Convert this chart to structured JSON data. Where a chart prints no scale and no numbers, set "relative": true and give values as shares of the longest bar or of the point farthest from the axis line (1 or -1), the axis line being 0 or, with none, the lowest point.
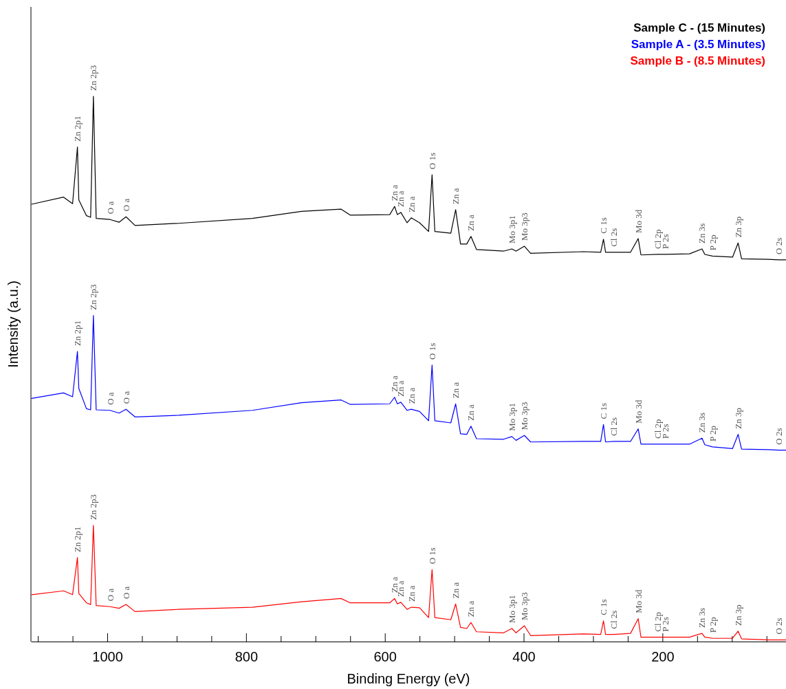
{
  "chart_data": {
    "type": "line",
    "relative": true,
    "xlabel": "Binding Energy (eV)",
    "ylabel": "Intensity (a.u.)",
    "xlim": [
      1110,
      22
    ],
    "xticks": [
      {
        "value": 1100,
        "label": null
      },
      {
        "value": 1050,
        "label": null
      },
      1000,
      {
        "value": 950,
        "label": null
      },
      {
        "value": 900,
        "label": null
      },
      {
        "value": 850,
        "label": null
      },
      800,
      {
        "value": 750,
        "label": null
      },
      {
        "value": 700,
        "label": null
      },
      {
        "value": 650,
        "label": null
      },
      600,
      {
        "value": 550,
        "label": null
      },
      {
        "value": 500,
        "label": null
      },
      {
        "value": 450,
        "label": null
      },
      400,
      {
        "value": 350,
        "label": null
      },
      {
        "value": 300,
        "label": null
      },
      {
        "value": 250,
        "label": null
      },
      200,
      {
        "value": 150,
        "label": null
      },
      {
        "value": 100,
        "label": null
      },
      {
        "value": 50,
        "label": null
      }
    ],
    "x": [
      1109,
      1063,
      1050,
      1043,
      1041,
      1030,
      1024,
      1020,
      1016,
      996,
      983,
      973,
      960,
      897,
      791,
      720,
      663,
      650,
      593,
      586,
      582,
      577,
      568,
      562,
      550,
      537,
      532,
      528,
      505,
      498,
      491,
      482,
      476,
      468,
      429,
      417,
      411,
      399,
      390,
      314,
      289,
      285,
      282,
      270,
      246,
      235,
      231,
      207,
      196,
      161,
      143,
      139,
      128,
      99,
      91,
      86,
      48,
      32,
      22
    ],
    "series": [
      {
        "name": "Sample C - (15  Minutes)",
        "color": "#000000",
        "values": [
          0.802,
          0.815,
          0.803,
          0.907,
          0.81,
          0.781,
          0.778,
          1.0,
          0.776,
          0.774,
          0.769,
          0.779,
          0.763,
          0.767,
          0.776,
          0.789,
          0.793,
          0.782,
          0.783,
          0.798,
          0.783,
          0.787,
          0.768,
          0.777,
          0.768,
          0.752,
          0.856,
          0.752,
          0.749,
          0.792,
          0.729,
          0.729,
          0.743,
          0.719,
          0.716,
          0.72,
          0.716,
          0.725,
          0.712,
          0.715,
          0.714,
          0.738,
          0.714,
          0.714,
          0.714,
          0.739,
          0.709,
          0.71,
          0.71,
          0.711,
          0.72,
          0.71,
          0.707,
          0.705,
          0.731,
          0.702,
          0.701,
          0.7,
          0.7
        ]
      },
      {
        "name": "Sample A - (3.5 Minutes)",
        "color": "#0000ff",
        "values": [
          0.446,
          0.456,
          0.449,
          0.532,
          0.464,
          0.427,
          0.425,
          0.598,
          0.425,
          0.424,
          0.419,
          0.426,
          0.412,
          0.415,
          0.424,
          0.438,
          0.443,
          0.435,
          0.436,
          0.448,
          0.436,
          0.439,
          0.424,
          0.426,
          0.422,
          0.405,
          0.507,
          0.405,
          0.401,
          0.436,
          0.381,
          0.38,
          0.395,
          0.372,
          0.371,
          0.376,
          0.369,
          0.378,
          0.366,
          0.367,
          0.367,
          0.398,
          0.366,
          0.367,
          0.367,
          0.39,
          0.362,
          0.362,
          0.362,
          0.362,
          0.373,
          0.361,
          0.357,
          0.354,
          0.38,
          0.353,
          0.352,
          0.351,
          0.351
        ]
      },
      {
        "name": "Sample B - (8.5 Minutes)",
        "color": "#ff0000",
        "values": [
          0.086,
          0.093,
          0.086,
          0.154,
          0.088,
          0.071,
          0.068,
          0.213,
          0.066,
          0.064,
          0.061,
          0.068,
          0.055,
          0.059,
          0.063,
          0.073,
          0.079,
          0.071,
          0.071,
          0.079,
          0.069,
          0.072,
          0.059,
          0.063,
          0.062,
          0.044,
          0.132,
          0.044,
          0.04,
          0.069,
          0.026,
          0.024,
          0.035,
          0.018,
          0.016,
          0.024,
          0.016,
          0.029,
          0.011,
          0.014,
          0.013,
          0.038,
          0.013,
          0.013,
          0.015,
          0.042,
          0.008,
          0.008,
          0.008,
          0.008,
          0.015,
          0.008,
          0.006,
          0.006,
          0.019,
          0.005,
          0.003,
          0.003,
          0.003
        ]
      }
    ],
    "legend": "top right",
    "annotations": [
      {
        "text": "Zn 2p1",
        "x": 1043,
        "y": 0.907
      },
      {
        "text": "Zn 2p3",
        "x": 1020,
        "y": 1.0
      },
      {
        "text": "O a",
        "x": 996,
        "y": 0.774
      },
      {
        "text": "O a",
        "x": 973,
        "y": 0.779
      },
      {
        "text": "Zn a",
        "x": 586,
        "y": 0.798
      },
      {
        "text": "Zn a",
        "x": 577,
        "y": 0.787
      },
      {
        "text": "Zn a",
        "x": 562,
        "y": 0.777
      },
      {
        "text": "O 1s",
        "x": 532,
        "y": 0.856
      },
      {
        "text": "Zn a",
        "x": 498,
        "y": 0.792
      },
      {
        "text": "Zn a",
        "x": 476,
        "y": 0.743
      },
      {
        "text": "Mo 3p1",
        "x": 417,
        "y": 0.72
      },
      {
        "text": "Mo 3p3",
        "x": 399,
        "y": 0.725
      },
      {
        "text": "C 1s",
        "x": 285,
        "y": 0.738
      },
      {
        "text": "Cl 2s",
        "x": 270,
        "y": 0.714
      },
      {
        "text": "Mo 3d",
        "x": 235,
        "y": 0.739
      },
      {
        "text": "Cl 2p",
        "x": 207,
        "y": 0.71
      },
      {
        "text": "P 2s",
        "x": 196,
        "y": 0.71
      },
      {
        "text": "Zn 3s",
        "x": 143,
        "y": 0.72
      },
      {
        "text": "P 2p",
        "x": 128,
        "y": 0.707
      },
      {
        "text": "Zn 3p",
        "x": 91,
        "y": 0.731
      },
      {
        "text": "O 2s",
        "x": 32,
        "y": 0.7
      },
      {
        "text": "Zn 2p1",
        "x": 1043,
        "y": 0.532
      },
      {
        "text": "Zn 2p3",
        "x": 1020,
        "y": 0.598
      },
      {
        "text": "O a",
        "x": 996,
        "y": 0.424
      },
      {
        "text": "O a",
        "x": 973,
        "y": 0.426
      },
      {
        "text": "Zn a",
        "x": 586,
        "y": 0.448
      },
      {
        "text": "Zn a",
        "x": 577,
        "y": 0.439
      },
      {
        "text": "Zn a",
        "x": 562,
        "y": 0.426
      },
      {
        "text": "O 1s",
        "x": 532,
        "y": 0.507
      },
      {
        "text": "Zn a",
        "x": 498,
        "y": 0.436
      },
      {
        "text": "Zn a",
        "x": 476,
        "y": 0.395
      },
      {
        "text": "Mo 3p1",
        "x": 417,
        "y": 0.376
      },
      {
        "text": "Mo 3p3",
        "x": 399,
        "y": 0.378
      },
      {
        "text": "C 1s",
        "x": 285,
        "y": 0.398
      },
      {
        "text": "Cl 2s",
        "x": 270,
        "y": 0.367
      },
      {
        "text": "Mo 3d",
        "x": 235,
        "y": 0.39
      },
      {
        "text": "Cl 2p",
        "x": 207,
        "y": 0.362
      },
      {
        "text": "P 2s",
        "x": 196,
        "y": 0.362
      },
      {
        "text": "Zn 3s",
        "x": 143,
        "y": 0.373
      },
      {
        "text": "P 2p",
        "x": 128,
        "y": 0.357
      },
      {
        "text": "Zn 3p",
        "x": 91,
        "y": 0.38
      },
      {
        "text": "O 2s",
        "x": 32,
        "y": 0.351
      },
      {
        "text": "Zn 2p1",
        "x": 1043,
        "y": 0.154
      },
      {
        "text": "Zn 2p3",
        "x": 1020,
        "y": 0.213
      },
      {
        "text": "O a",
        "x": 996,
        "y": 0.064
      },
      {
        "text": "O a",
        "x": 973,
        "y": 0.068
      },
      {
        "text": "Zn a",
        "x": 586,
        "y": 0.079
      },
      {
        "text": "Zn a",
        "x": 577,
        "y": 0.072
      },
      {
        "text": "Zn a",
        "x": 562,
        "y": 0.063
      },
      {
        "text": "O 1s",
        "x": 532,
        "y": 0.132
      },
      {
        "text": "Zn a",
        "x": 498,
        "y": 0.069
      },
      {
        "text": "Zn a",
        "x": 476,
        "y": 0.035
      },
      {
        "text": "Mo 3p1",
        "x": 417,
        "y": 0.024
      },
      {
        "text": "Mo 3p3",
        "x": 399,
        "y": 0.029
      },
      {
        "text": "C 1s",
        "x": 285,
        "y": 0.038
      },
      {
        "text": "Cl 2s",
        "x": 270,
        "y": 0.013
      },
      {
        "text": "Mo 3d",
        "x": 235,
        "y": 0.042
      },
      {
        "text": "Cl 2p",
        "x": 207,
        "y": 0.008
      },
      {
        "text": "P 2s",
        "x": 196,
        "y": 0.008
      },
      {
        "text": "Zn 3s",
        "x": 143,
        "y": 0.015
      },
      {
        "text": "P 2p",
        "x": 128,
        "y": 0.006
      },
      {
        "text": "Zn 3p",
        "x": 91,
        "y": 0.019
      },
      {
        "text": "O 2s",
        "x": 32,
        "y": 0.003
      }
    ]
  }
}
